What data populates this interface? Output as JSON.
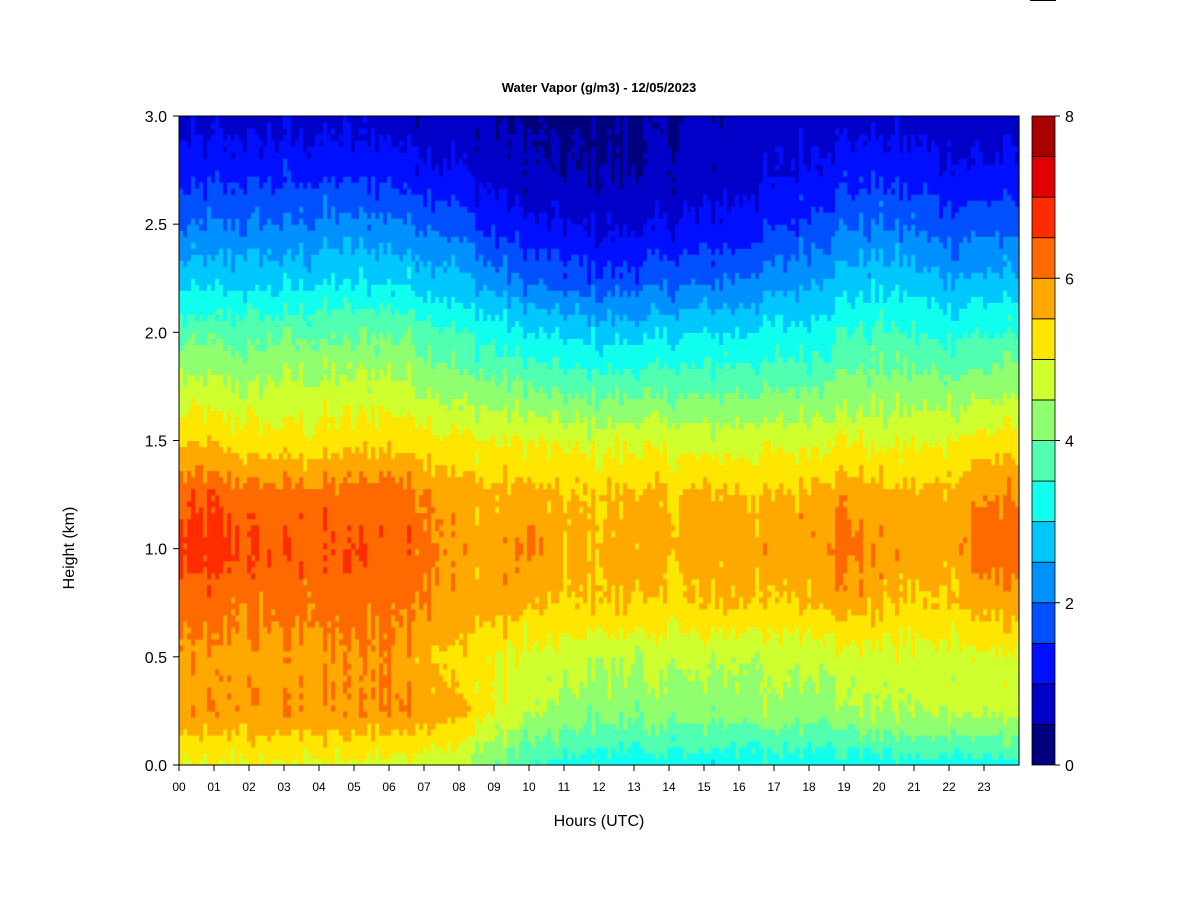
{
  "chart_data": {
    "type": "heatmap",
    "title": "Water Vapor (g/m3) - 12/05/2023",
    "xlabel": "Hours (UTC)",
    "ylabel": "Height (km)",
    "x_ticks": [
      "00",
      "01",
      "02",
      "03",
      "04",
      "05",
      "06",
      "07",
      "08",
      "09",
      "10",
      "11",
      "12",
      "13",
      "14",
      "15",
      "16",
      "17",
      "18",
      "19",
      "20",
      "21",
      "22",
      "23"
    ],
    "y_ticks": [
      "0.0",
      "0.5",
      "1.0",
      "1.5",
      "2.0",
      "2.5",
      "3.0"
    ],
    "xlim": [
      0,
      24
    ],
    "ylim": [
      0,
      3.0
    ],
    "colorbar": {
      "ticks": [
        "0",
        "2",
        "4",
        "6",
        "8"
      ],
      "range": [
        0,
        8
      ],
      "levels": [
        0,
        0.5,
        1,
        1.5,
        2,
        2.5,
        3,
        3.5,
        4,
        4.5,
        5,
        5.5,
        6,
        6.5,
        7,
        7.5,
        8
      ],
      "colors": [
        "#00007f",
        "#0000c8",
        "#0010ff",
        "#0050ff",
        "#0090ff",
        "#00c8ff",
        "#10ffef",
        "#50ffaf",
        "#90ff6f",
        "#d0ff2f",
        "#ffe600",
        "#ffa800",
        "#ff6a00",
        "#ff2c00",
        "#e10000",
        "#a80000"
      ]
    },
    "hours": [
      0,
      1,
      2,
      3,
      4,
      5,
      6,
      7,
      8,
      9,
      10,
      11,
      12,
      13,
      14,
      15,
      16,
      17,
      18,
      19,
      20,
      21,
      22,
      23,
      24
    ],
    "heights_km": [
      0.0,
      0.25,
      0.5,
      0.75,
      1.0,
      1.25,
      1.5,
      1.75,
      2.0,
      2.25,
      2.5,
      2.75,
      3.0
    ],
    "values_by_height": [
      [
        4.9,
        4.9,
        4.9,
        4.9,
        4.9,
        4.9,
        4.8,
        4.8,
        4.6,
        4.0,
        3.5,
        3.3,
        3.2,
        3.2,
        3.2,
        3.2,
        3.2,
        3.2,
        3.2,
        3.2,
        3.2,
        3.3,
        3.3,
        3.3,
        3.3
      ],
      [
        5.8,
        5.9,
        5.9,
        5.9,
        5.9,
        5.9,
        6.0,
        6.0,
        5.6,
        5.0,
        4.6,
        4.3,
        4.2,
        4.2,
        4.2,
        4.2,
        4.3,
        4.3,
        4.3,
        4.4,
        4.5,
        4.5,
        4.6,
        4.6,
        4.6
      ],
      [
        5.8,
        5.8,
        5.8,
        5.8,
        5.9,
        5.9,
        6.0,
        5.7,
        5.3,
        5.0,
        4.8,
        4.7,
        4.6,
        4.6,
        4.6,
        4.6,
        4.6,
        4.6,
        4.7,
        4.8,
        4.8,
        4.8,
        4.8,
        4.9,
        4.9
      ],
      [
        6.2,
        6.2,
        6.1,
        6.2,
        6.1,
        6.2,
        6.1,
        6.1,
        5.8,
        5.8,
        5.6,
        5.4,
        5.5,
        5.5,
        5.3,
        5.5,
        5.6,
        5.4,
        5.6,
        5.8,
        5.6,
        5.4,
        5.5,
        5.7,
        5.7
      ],
      [
        6.6,
        6.7,
        6.5,
        6.4,
        6.4,
        6.5,
        6.4,
        6.3,
        5.8,
        5.7,
        6.1,
        5.6,
        5.6,
        5.8,
        5.6,
        5.7,
        5.8,
        5.7,
        5.9,
        6.2,
        5.9,
        5.8,
        5.8,
        6.3,
        6.3
      ],
      [
        6.3,
        6.4,
        6.2,
        6.2,
        6.2,
        6.2,
        6.3,
        6.1,
        5.7,
        5.6,
        5.7,
        5.5,
        5.5,
        5.6,
        5.5,
        5.6,
        5.6,
        5.5,
        5.7,
        5.9,
        5.7,
        5.6,
        5.7,
        6.0,
        6.0
      ],
      [
        5.4,
        5.4,
        5.2,
        5.2,
        5.2,
        5.3,
        5.4,
        5.3,
        5.1,
        5.0,
        5.0,
        4.9,
        4.8,
        4.9,
        4.8,
        4.8,
        4.8,
        4.8,
        4.9,
        5.0,
        4.9,
        4.9,
        5.0,
        5.2,
        5.2
      ],
      [
        4.6,
        4.6,
        4.5,
        4.6,
        4.6,
        4.6,
        4.7,
        4.5,
        4.2,
        4.1,
        4.0,
        3.8,
        3.8,
        3.8,
        3.8,
        3.8,
        3.9,
        3.9,
        4.0,
        4.2,
        4.2,
        4.2,
        4.2,
        4.3,
        4.3
      ],
      [
        3.8,
        3.8,
        3.8,
        3.9,
        3.9,
        3.9,
        4.0,
        3.8,
        3.5,
        3.3,
        3.0,
        2.9,
        2.8,
        2.8,
        2.9,
        3.0,
        3.0,
        3.1,
        3.2,
        3.5,
        3.6,
        3.5,
        3.4,
        3.5,
        3.5
      ],
      [
        2.7,
        2.8,
        2.8,
        2.8,
        2.9,
        2.9,
        2.9,
        2.8,
        2.6,
        2.2,
        1.9,
        1.7,
        1.6,
        1.7,
        1.8,
        1.9,
        2.0,
        2.2,
        2.4,
        2.7,
        2.8,
        2.7,
        2.5,
        2.6,
        2.6
      ],
      [
        1.9,
        2.0,
        2.0,
        2.0,
        2.1,
        2.2,
        2.1,
        2.0,
        1.8,
        1.3,
        1.1,
        1.0,
        0.9,
        0.9,
        1.0,
        1.1,
        1.2,
        1.4,
        1.6,
        1.9,
        2.0,
        1.9,
        1.7,
        1.8,
        1.8
      ],
      [
        1.2,
        1.3,
        1.3,
        1.3,
        1.3,
        1.3,
        1.3,
        1.2,
        1.0,
        0.8,
        0.6,
        0.5,
        0.5,
        0.5,
        0.6,
        0.7,
        0.8,
        0.9,
        1.1,
        1.3,
        1.3,
        1.2,
        1.1,
        1.1,
        1.1
      ],
      [
        0.8,
        0.8,
        0.8,
        0.8,
        0.8,
        0.8,
        0.8,
        0.7,
        0.7,
        0.5,
        0.4,
        0.3,
        0.4,
        0.4,
        0.5,
        0.6,
        0.6,
        0.7,
        0.8,
        0.8,
        0.8,
        0.8,
        0.7,
        0.7,
        0.7
      ]
    ]
  }
}
